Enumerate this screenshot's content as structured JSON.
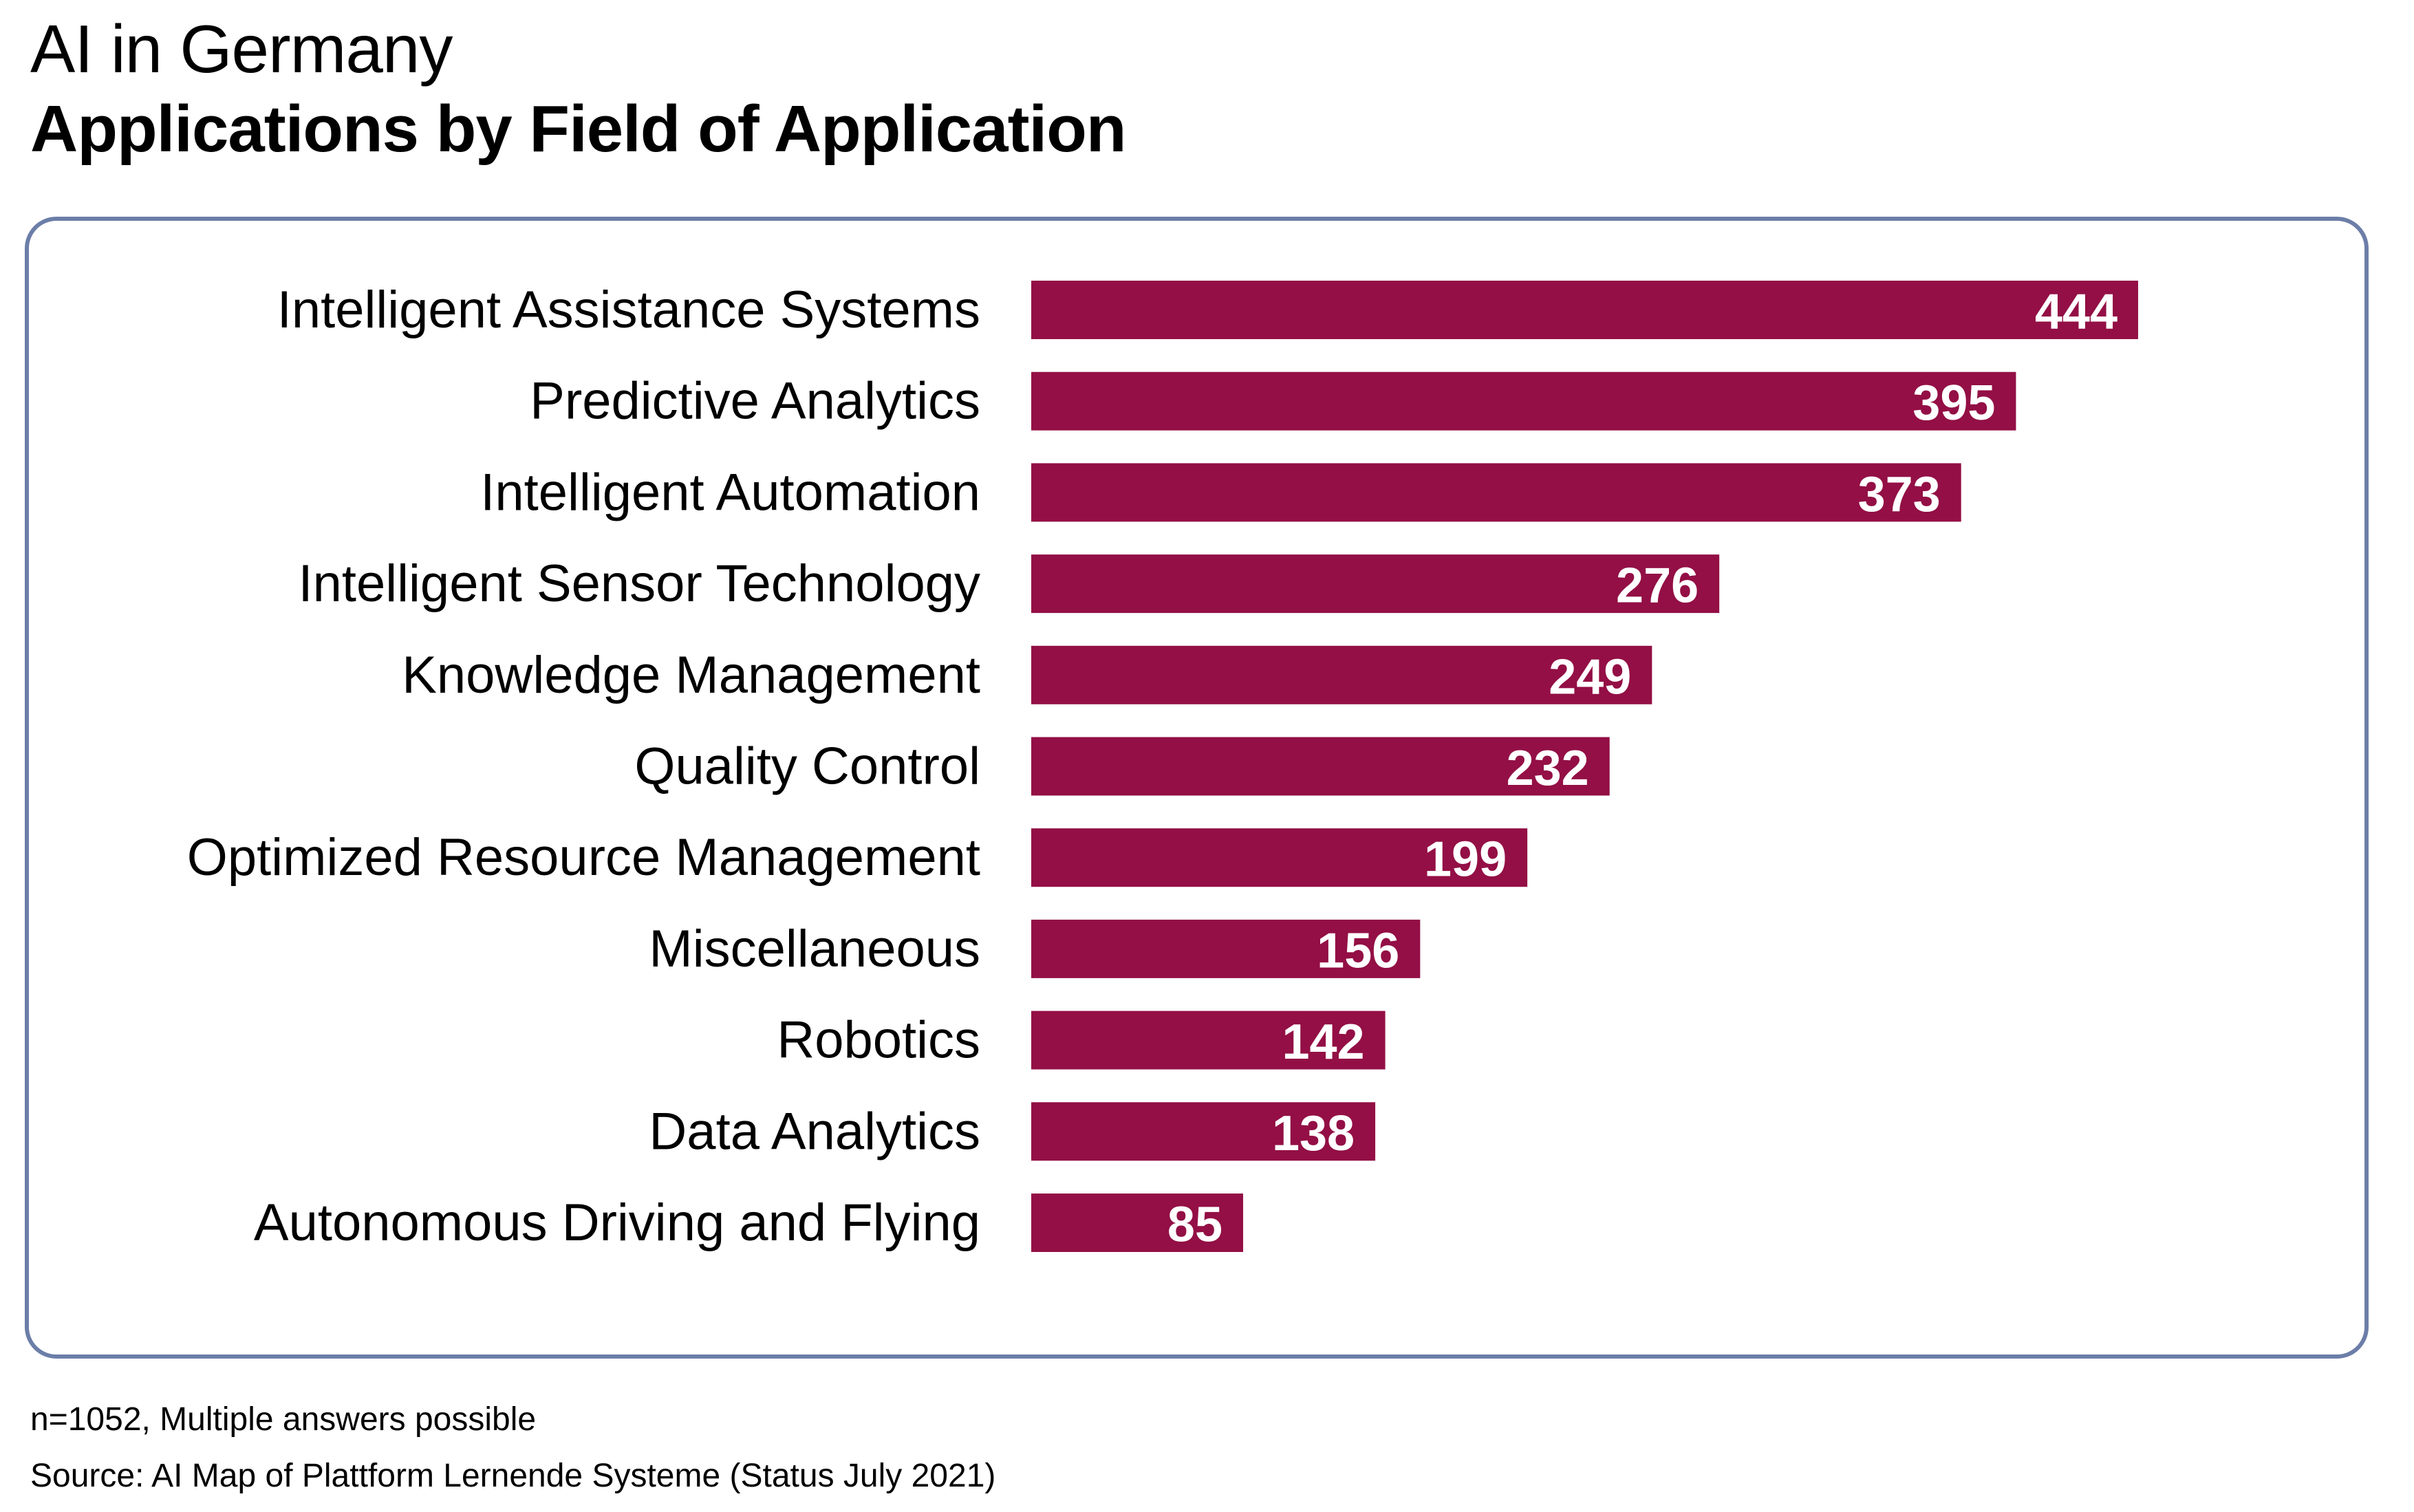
{
  "header": {
    "title": "AI in Germany",
    "subtitle": "Applications by Field of Application"
  },
  "footer": {
    "note": "n=1052, Multiple answers possible",
    "source": "Source: AI Map of Plattform Lernende Systeme (Status July 2021)"
  },
  "colors": {
    "bar": "#930F45",
    "frame": "#6C7EA8",
    "value_text": "#FFFFFF",
    "label_text": "#000000"
  },
  "chart_data": {
    "type": "bar",
    "orientation": "horizontal",
    "title": "AI in Germany",
    "subtitle": "Applications by Field of Application",
    "xlabel": "",
    "ylabel": "",
    "grid": false,
    "legend": "none",
    "xlim": [
      0,
      444
    ],
    "categories": [
      "Intelligent Assistance Systems",
      "Predictive Analytics",
      "Intelligent Automation",
      "Intelligent Sensor Technology",
      "Knowledge Management",
      "Quality Control",
      "Optimized Resource Management",
      "Miscellaneous",
      "Robotics",
      "Data Analytics",
      "Autonomous Driving and Flying"
    ],
    "values": [
      444,
      395,
      373,
      276,
      249,
      232,
      199,
      156,
      142,
      138,
      85
    ],
    "data_labels": [
      "444",
      "395",
      "373",
      "276",
      "249",
      "232",
      "199",
      "156",
      "142",
      "138",
      "85"
    ],
    "annotations": [
      "n=1052, Multiple answers possible",
      "Source: AI Map of Plattform Lernende Systeme (Status July 2021)"
    ]
  }
}
